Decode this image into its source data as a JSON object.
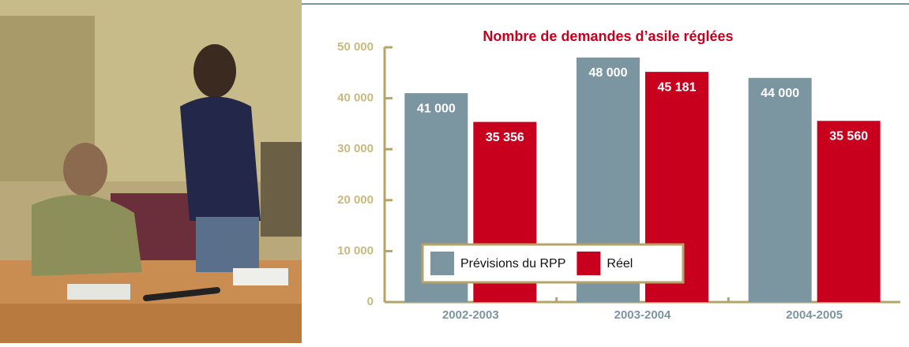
{
  "chart_data": {
    "type": "bar",
    "title": "Nombre de demandes d’asile réglées",
    "categories": [
      "2002-2003",
      "2003-2004",
      "2004-2005"
    ],
    "series": [
      {
        "name": "Prévisions du RPP",
        "color": "#7b96a1",
        "values": [
          41000,
          48000,
          44000
        ],
        "value_labels": [
          "41 000",
          "48 000",
          "44 000"
        ]
      },
      {
        "name": "Réel",
        "color": "#c8001e",
        "values": [
          35356,
          45181,
          35560
        ],
        "value_labels": [
          "35 356",
          "45 181",
          "35 560"
        ]
      }
    ],
    "ylim": [
      0,
      50000
    ],
    "yticks": [
      0,
      {
        "value": 10000,
        "label": "10 000"
      },
      {
        "value": 20000,
        "label": "20 000"
      },
      {
        "value": 30000,
        "label": "30 000"
      },
      {
        "value": 40000,
        "label": "40 000"
      },
      {
        "value": 50000,
        "label": "50 000"
      }
    ],
    "grid": false,
    "legend": "bottom-left"
  }
}
